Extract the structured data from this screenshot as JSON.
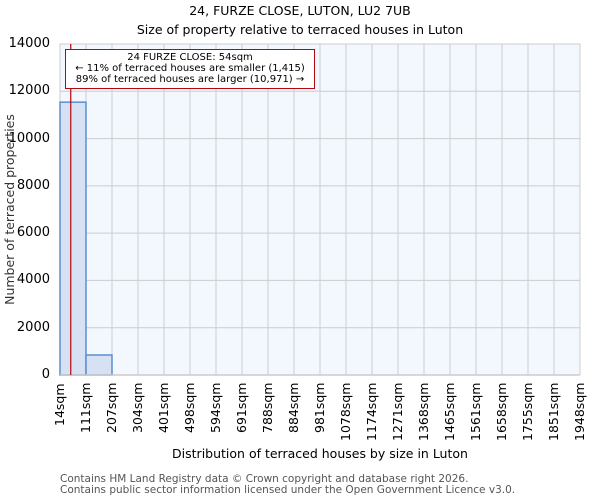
{
  "header": {
    "title": "24, FURZE CLOSE, LUTON, LU2 7UB",
    "subtitle": "Size of property relative to terraced houses in Luton"
  },
  "annotation": {
    "line1": "24 FURZE CLOSE: 54sqm",
    "line2": "← 11% of terraced houses are smaller (1,415)",
    "line3": "89% of terraced houses are larger (10,971) →"
  },
  "axes": {
    "xlabel": "Distribution of terraced houses by size in Luton",
    "ylabel": "Number of terraced properties",
    "yticks": [
      "0",
      "2000",
      "4000",
      "6000",
      "8000",
      "10000",
      "12000",
      "14000"
    ],
    "xticks": [
      "14sqm",
      "111sqm",
      "207sqm",
      "304sqm",
      "401sqm",
      "498sqm",
      "594sqm",
      "691sqm",
      "788sqm",
      "884sqm",
      "981sqm",
      "1078sqm",
      "1174sqm",
      "1271sqm",
      "1368sqm",
      "1465sqm",
      "1561sqm",
      "1658sqm",
      "1755sqm",
      "1851sqm",
      "1948sqm"
    ]
  },
  "footer": {
    "line1": "Contains HM Land Registry data © Crown copyright and database right 2026.",
    "line2": "Contains public sector information licensed under the Open Government Licence v3.0."
  },
  "colors": {
    "bar_fill": "#d6e2f3",
    "bar_edge": "#5b8fd0",
    "plot_bg": "#f3f7fe",
    "grid": "#cccccc",
    "marker": "#b20710"
  },
  "chart_data": {
    "type": "bar",
    "title": "24, FURZE CLOSE, LUTON, LU2 7UB",
    "subtitle": "Size of property relative to terraced houses in Luton",
    "xlabel": "Distribution of terraced houses by size in Luton",
    "ylabel": "Number of terraced properties",
    "categories": [
      "14sqm",
      "111sqm",
      "207sqm",
      "304sqm",
      "401sqm",
      "498sqm",
      "594sqm",
      "691sqm",
      "788sqm",
      "884sqm",
      "981sqm",
      "1078sqm",
      "1174sqm",
      "1271sqm",
      "1368sqm",
      "1465sqm",
      "1561sqm",
      "1658sqm",
      "1755sqm",
      "1851sqm"
    ],
    "values": [
      11540,
      846,
      0,
      0,
      0,
      0,
      0,
      0,
      0,
      0,
      0,
      0,
      0,
      0,
      0,
      0,
      0,
      0,
      0,
      0
    ],
    "ylim": [
      0,
      14000
    ],
    "grid": true,
    "subject_marker": {
      "value_sqm": 54,
      "label": "24 FURZE CLOSE: 54sqm",
      "smaller_pct": 11,
      "smaller_count": 1415,
      "larger_pct": 89,
      "larger_count": 10971
    }
  }
}
